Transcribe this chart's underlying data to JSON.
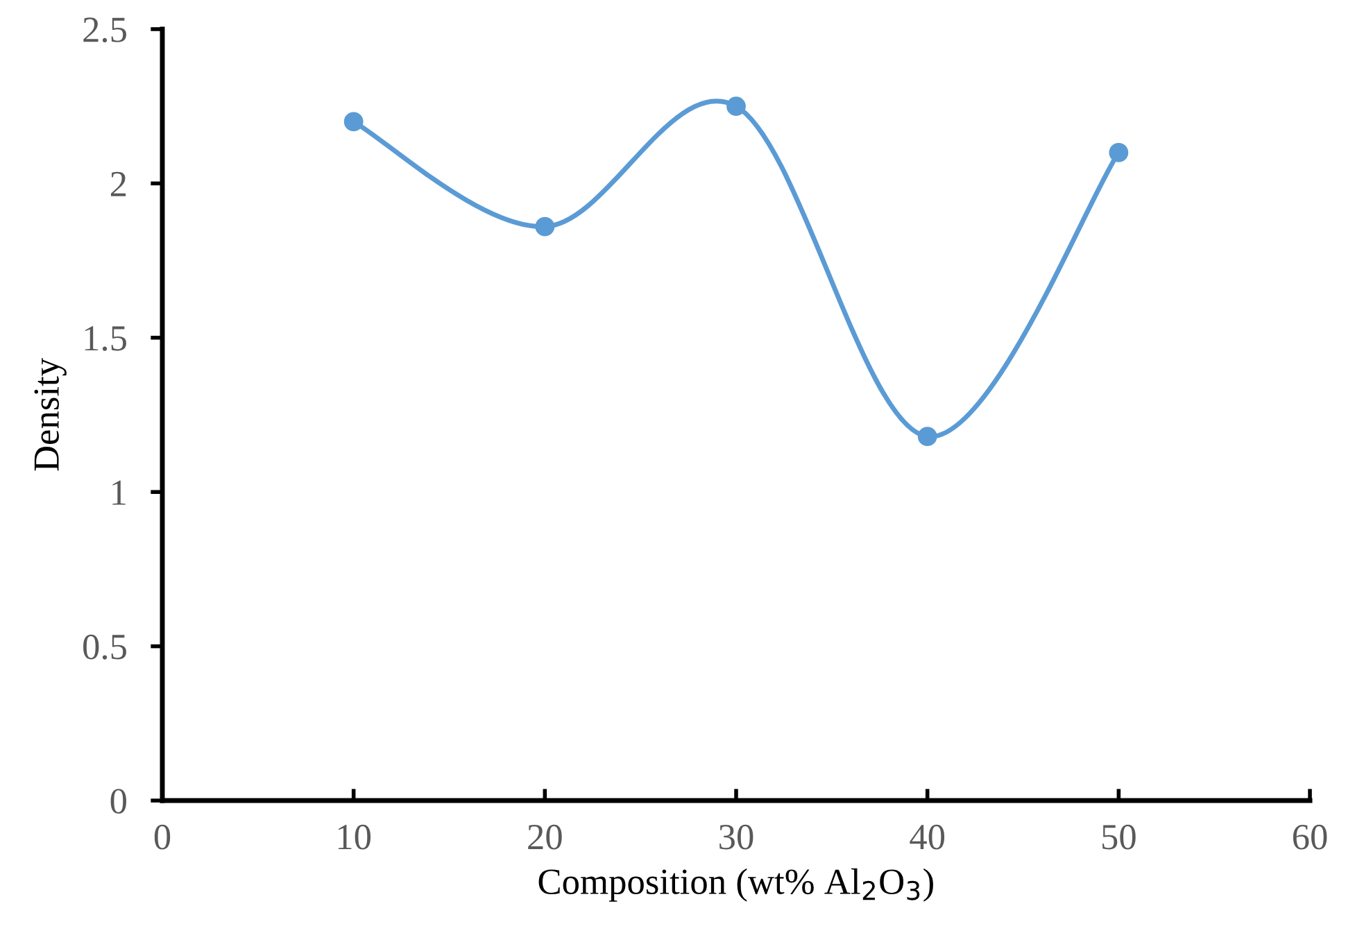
{
  "chart_data": {
    "type": "line",
    "xlabel": "Composition (wt% Al$_{2}$O$_{3}$)",
    "ylabel": "Density",
    "x": [
      10,
      20,
      30,
      40,
      50
    ],
    "series": [
      {
        "color": "#5b9bd5",
        "values": [
          2.2,
          1.86,
          2.25,
          1.18,
          2.1
        ]
      }
    ],
    "xlim": [
      0,
      60
    ],
    "xticks": [
      0,
      10,
      20,
      30,
      40,
      50,
      60
    ],
    "ylim": [
      0,
      2.5
    ],
    "yticks": [
      0,
      0.5,
      1,
      1.5,
      2,
      2.5
    ],
    "marker": "circle",
    "line_style": "solid",
    "grid": false,
    "legend": false
  }
}
